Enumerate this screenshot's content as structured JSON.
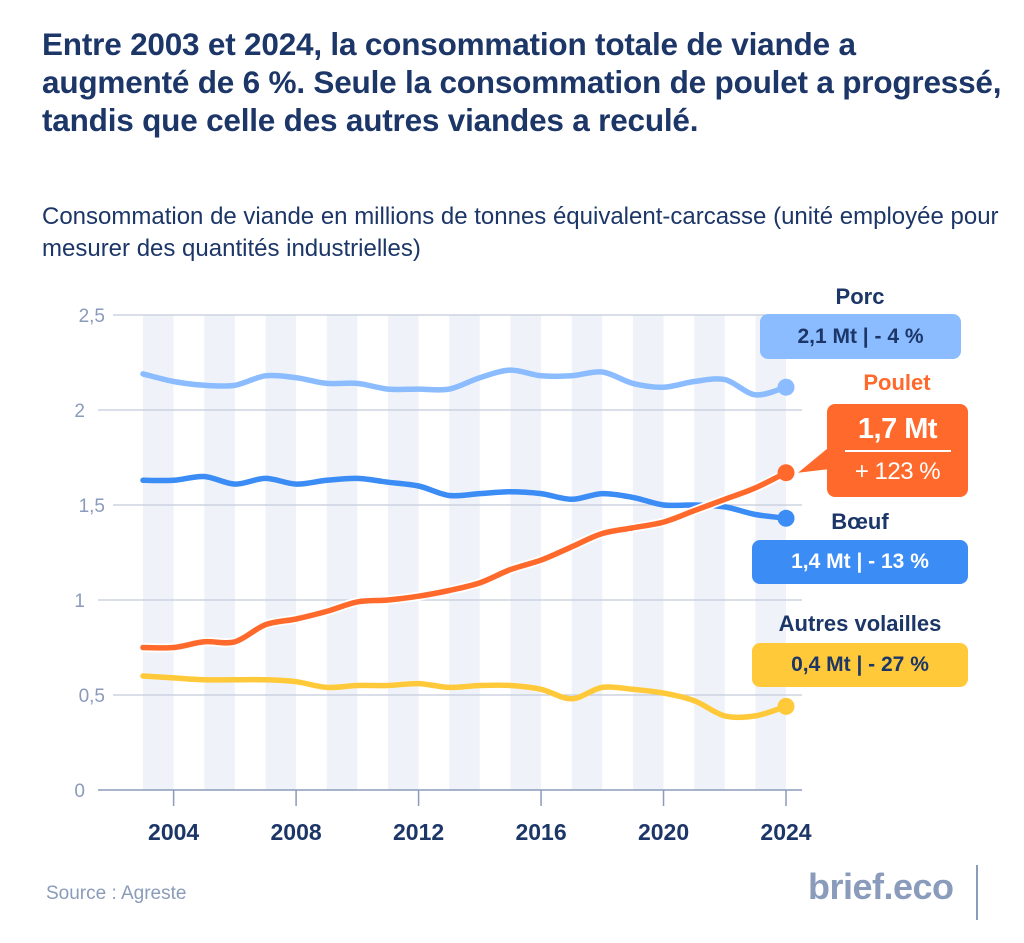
{
  "header": {
    "title": "Entre 2003 et 2024, la consommation totale de viande a augmenté de 6 %. Seule la consommation de poulet a progressé, tandis que celle des autres viandes a reculé.",
    "subtitle": "Consommation de viande en millions de tonnes équivalent-carcasse (unité employée pour mesurer des quantités industrielles)"
  },
  "footer": {
    "source": "Source : Agreste",
    "brand": "brief.eco"
  },
  "labels": {
    "porc": {
      "title": "Porc",
      "value": "2,1 Mt | - 4 %"
    },
    "poulet": {
      "title": "Poulet",
      "value": "1,7 Mt",
      "change": "+ 123 %"
    },
    "boeuf": {
      "title": "Bœuf",
      "value": "1,4 Mt | - 13 %"
    },
    "autres": {
      "title": "Autres volailles",
      "value": "0,4 Mt | - 27 %"
    }
  },
  "colors": {
    "porc": "#8bbcff",
    "boeuf": "#3b8cf5",
    "poulet": "#ff6a2c",
    "autres": "#ffc93a",
    "text_dark": "#1c3668",
    "axis": "#8a9bbb",
    "stripe": "#eff3f9"
  },
  "chart_data": {
    "type": "line",
    "title": "Entre 2003 et 2024, la consommation totale de viande a augmenté de 6 %",
    "xlabel": "",
    "ylabel": "Millions de tonnes équivalent-carcasse",
    "x": [
      2003,
      2004,
      2005,
      2006,
      2007,
      2008,
      2009,
      2010,
      2011,
      2012,
      2013,
      2014,
      2015,
      2016,
      2017,
      2018,
      2019,
      2020,
      2021,
      2022,
      2023,
      2024
    ],
    "xticks": [
      2004,
      2008,
      2012,
      2016,
      2020,
      2024
    ],
    "xtick_labels": [
      "2004",
      "2008",
      "2012",
      "2016",
      "2020",
      "2024"
    ],
    "ylim": [
      0,
      2.5
    ],
    "yticks": [
      0,
      0.5,
      1,
      1.5,
      2,
      2.5
    ],
    "ytick_labels": [
      "0",
      "0,5",
      "1",
      "1,5",
      "2",
      "2,5"
    ],
    "grid": true,
    "series": [
      {
        "key": "porc",
        "name": "Porc",
        "values": [
          2.19,
          2.15,
          2.13,
          2.13,
          2.18,
          2.17,
          2.14,
          2.14,
          2.11,
          2.11,
          2.11,
          2.17,
          2.21,
          2.18,
          2.18,
          2.2,
          2.14,
          2.12,
          2.15,
          2.16,
          2.08,
          2.12
        ]
      },
      {
        "key": "boeuf",
        "name": "Bœuf",
        "values": [
          1.63,
          1.63,
          1.65,
          1.61,
          1.64,
          1.61,
          1.63,
          1.64,
          1.62,
          1.6,
          1.55,
          1.56,
          1.57,
          1.56,
          1.53,
          1.56,
          1.54,
          1.5,
          1.5,
          1.49,
          1.45,
          1.43
        ]
      },
      {
        "key": "autres",
        "name": "Autres volailles",
        "values": [
          0.6,
          0.59,
          0.58,
          0.58,
          0.58,
          0.57,
          0.54,
          0.55,
          0.55,
          0.56,
          0.54,
          0.55,
          0.55,
          0.53,
          0.48,
          0.54,
          0.53,
          0.51,
          0.47,
          0.39,
          0.39,
          0.44
        ]
      },
      {
        "key": "poulet",
        "name": "Poulet",
        "values": [
          0.75,
          0.75,
          0.78,
          0.78,
          0.87,
          0.9,
          0.94,
          0.99,
          1.0,
          1.02,
          1.05,
          1.09,
          1.16,
          1.21,
          1.28,
          1.35,
          1.38,
          1.41,
          1.47,
          1.53,
          1.59,
          1.67
        ]
      }
    ],
    "annotations": [
      {
        "series": "Porc",
        "text": "2,1 Mt | - 4 %"
      },
      {
        "series": "Poulet",
        "text": "1,7 Mt / + 123 %"
      },
      {
        "series": "Bœuf",
        "text": "1,4 Mt | - 13 %"
      },
      {
        "series": "Autres volailles",
        "text": "0,4 Mt | - 27 %"
      }
    ]
  }
}
